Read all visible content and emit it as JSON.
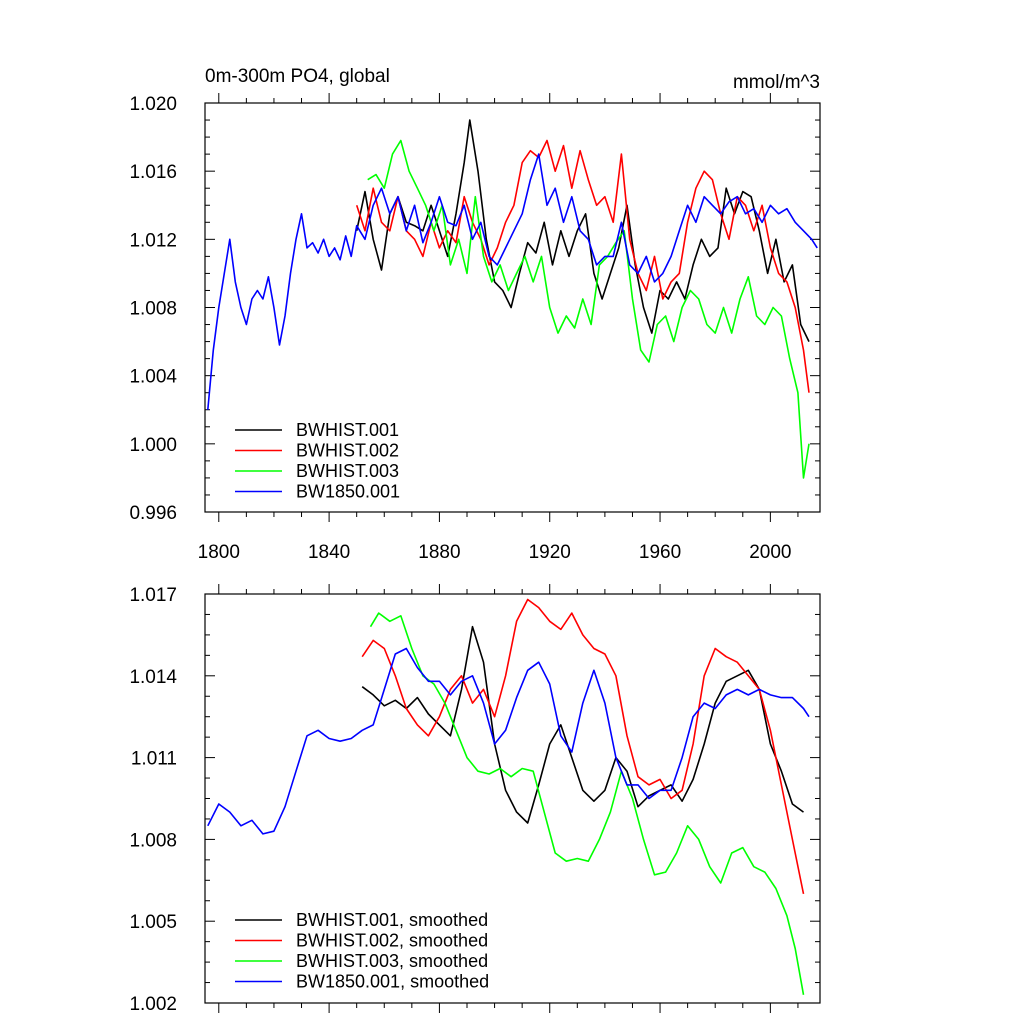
{
  "chart_data": [
    {
      "type": "line",
      "title": "0m-300m PO4, global",
      "units": "mmol/m^3",
      "xlim": [
        1795,
        2018
      ],
      "ylim": [
        0.996,
        1.02
      ],
      "xticks": [
        1800,
        1840,
        1880,
        1920,
        1960,
        2000
      ],
      "yticks": [
        0.996,
        1.0,
        1.004,
        1.008,
        1.012,
        1.016,
        1.02
      ],
      "ytick_labels": [
        "0.996",
        "1.000",
        "1.004",
        "1.008",
        "1.012",
        "1.016",
        "1.020"
      ],
      "xtick_labels": [
        "1800",
        "1840",
        "1880",
        "1920",
        "1960",
        "2000"
      ],
      "legend": [
        "BWHIST.001",
        "BWHIST.002",
        "BWHIST.003",
        "BW1850.001"
      ],
      "series": [
        {
          "name": "BWHIST.001",
          "color": "#000000",
          "x": [
            1850,
            1853,
            1856,
            1859,
            1862,
            1865,
            1868,
            1871,
            1874,
            1877,
            1880,
            1883,
            1886,
            1889,
            1891,
            1894,
            1897,
            1900,
            1903,
            1906,
            1909,
            1912,
            1915,
            1918,
            1921,
            1924,
            1927,
            1930,
            1933,
            1936,
            1939,
            1942,
            1945,
            1948,
            1951,
            1954,
            1957,
            1960,
            1963,
            1966,
            1969,
            1972,
            1975,
            1978,
            1981,
            1984,
            1987,
            1990,
            1993,
            1996,
            1999,
            2002,
            2005,
            2008,
            2011,
            2014
          ],
          "values": [
            1.0125,
            1.0148,
            1.012,
            1.0102,
            1.0135,
            1.0145,
            1.013,
            1.0128,
            1.0125,
            1.014,
            1.0125,
            1.011,
            1.0135,
            1.0165,
            1.019,
            1.016,
            1.012,
            1.0095,
            1.009,
            1.008,
            1.01,
            1.0118,
            1.0112,
            1.013,
            1.0105,
            1.0125,
            1.011,
            1.0125,
            1.0135,
            1.01,
            1.0085,
            1.01,
            1.0115,
            1.014,
            1.0105,
            1.008,
            1.0065,
            1.009,
            1.0085,
            1.0095,
            1.0085,
            1.0105,
            1.012,
            1.011,
            1.0115,
            1.015,
            1.0135,
            1.0148,
            1.0145,
            1.0125,
            1.01,
            1.012,
            1.0095,
            1.0105,
            1.007,
            1.006
          ]
        },
        {
          "name": "BWHIST.002",
          "color": "#ff0000",
          "x": [
            1850,
            1853,
            1856,
            1859,
            1862,
            1865,
            1868,
            1871,
            1874,
            1877,
            1880,
            1883,
            1886,
            1889,
            1892,
            1895,
            1898,
            1901,
            1904,
            1907,
            1910,
            1913,
            1916,
            1919,
            1922,
            1925,
            1928,
            1931,
            1934,
            1937,
            1940,
            1943,
            1946,
            1949,
            1952,
            1955,
            1958,
            1961,
            1964,
            1967,
            1970,
            1973,
            1976,
            1979,
            1982,
            1985,
            1988,
            1991,
            1994,
            1997,
            2000,
            2003,
            2006,
            2009,
            2012,
            2014
          ],
          "values": [
            1.014,
            1.0125,
            1.015,
            1.013,
            1.0125,
            1.0145,
            1.0125,
            1.012,
            1.011,
            1.013,
            1.0115,
            1.0125,
            1.0118,
            1.0145,
            1.013,
            1.012,
            1.0105,
            1.0115,
            1.013,
            1.014,
            1.0165,
            1.0172,
            1.0168,
            1.0178,
            1.016,
            1.0175,
            1.015,
            1.0172,
            1.0155,
            1.014,
            1.0145,
            1.013,
            1.017,
            1.012,
            1.01,
            1.009,
            1.011,
            1.0085,
            1.0095,
            1.01,
            1.013,
            1.015,
            1.016,
            1.0155,
            1.0135,
            1.012,
            1.0145,
            1.014,
            1.0125,
            1.014,
            1.0115,
            1.01,
            1.0095,
            1.008,
            1.0055,
            1.003
          ]
        },
        {
          "name": "BWHIST.003",
          "color": "#00ff00",
          "x": [
            1854,
            1857,
            1860,
            1863,
            1866,
            1869,
            1872,
            1875,
            1878,
            1881,
            1884,
            1887,
            1890,
            1893,
            1896,
            1899,
            1902,
            1905,
            1908,
            1911,
            1914,
            1917,
            1920,
            1923,
            1926,
            1929,
            1932,
            1935,
            1938,
            1941,
            1944,
            1947,
            1950,
            1953,
            1956,
            1959,
            1962,
            1965,
            1968,
            1971,
            1974,
            1977,
            1980,
            1983,
            1986,
            1989,
            1992,
            1995,
            1998,
            2001,
            2004,
            2007,
            2010,
            2012,
            2014
          ],
          "values": [
            1.0155,
            1.0158,
            1.015,
            1.017,
            1.0178,
            1.016,
            1.015,
            1.014,
            1.0125,
            1.014,
            1.0105,
            1.012,
            1.01,
            1.0145,
            1.011,
            1.0095,
            1.0105,
            1.009,
            1.01,
            1.011,
            1.0095,
            1.011,
            1.008,
            1.0065,
            1.0075,
            1.0068,
            1.0085,
            1.007,
            1.0105,
            1.011,
            1.0118,
            1.0125,
            1.0085,
            1.0055,
            1.0048,
            1.007,
            1.0075,
            1.006,
            1.008,
            1.009,
            1.0085,
            1.007,
            1.0065,
            1.008,
            1.0065,
            1.0085,
            1.0098,
            1.0075,
            1.007,
            1.008,
            1.0075,
            1.005,
            1.003,
            0.998,
            1.0
          ]
        },
        {
          "name": "BW1850.001",
          "color": "#0000ff",
          "x": [
            1796,
            1798,
            1800,
            1802,
            1804,
            1806,
            1808,
            1810,
            1812,
            1814,
            1816,
            1818,
            1820,
            1822,
            1824,
            1826,
            1828,
            1830,
            1832,
            1834,
            1836,
            1838,
            1840,
            1842,
            1844,
            1846,
            1848,
            1850,
            1853,
            1856,
            1859,
            1862,
            1865,
            1868,
            1871,
            1874,
            1877,
            1880,
            1883,
            1886,
            1889,
            1892,
            1895,
            1898,
            1901,
            1904,
            1907,
            1910,
            1913,
            1916,
            1919,
            1922,
            1925,
            1928,
            1931,
            1934,
            1937,
            1940,
            1943,
            1946,
            1949,
            1952,
            1955,
            1958,
            1961,
            1964,
            1967,
            1970,
            1973,
            1976,
            1979,
            1982,
            1985,
            1988,
            1991,
            1994,
            1997,
            2000,
            2003,
            2006,
            2009,
            2012,
            2015,
            2017
          ],
          "values": [
            1.002,
            1.0055,
            1.008,
            1.01,
            1.012,
            1.0095,
            1.008,
            1.007,
            1.0085,
            1.009,
            1.0085,
            1.0098,
            1.008,
            1.0058,
            1.0075,
            1.01,
            1.012,
            1.0135,
            1.0115,
            1.0118,
            1.0112,
            1.012,
            1.011,
            1.0115,
            1.0108,
            1.0122,
            1.011,
            1.0128,
            1.012,
            1.014,
            1.015,
            1.0135,
            1.0145,
            1.0125,
            1.014,
            1.0118,
            1.013,
            1.0145,
            1.013,
            1.0128,
            1.014,
            1.012,
            1.013,
            1.011,
            1.0105,
            1.0115,
            1.0125,
            1.0135,
            1.0155,
            1.017,
            1.014,
            1.015,
            1.013,
            1.0145,
            1.0125,
            1.012,
            1.0105,
            1.011,
            1.011,
            1.013,
            1.0105,
            1.01,
            1.011,
            1.0095,
            1.01,
            1.011,
            1.0125,
            1.014,
            1.013,
            1.0145,
            1.014,
            1.0135,
            1.0142,
            1.0145,
            1.0135,
            1.0138,
            1.013,
            1.014,
            1.0135,
            1.0138,
            1.013,
            1.0125,
            1.012,
            1.0115
          ]
        }
      ]
    },
    {
      "type": "line",
      "title": "",
      "xlim": [
        1795,
        2018
      ],
      "ylim": [
        1.002,
        1.017
      ],
      "xticks": [
        1800,
        1840,
        1880,
        1920,
        1960,
        2000
      ],
      "yticks": [
        1.002,
        1.005,
        1.008,
        1.011,
        1.014,
        1.017
      ],
      "ytick_labels": [
        "1.002",
        "1.005",
        "1.008",
        "1.011",
        "1.014",
        "1.017"
      ],
      "legend": [
        "BWHIST.001, smoothed",
        "BWHIST.002, smoothed",
        "BWHIST.003, smoothed",
        "BW1850.001, smoothed"
      ],
      "series": [
        {
          "name": "BWHIST.001, smoothed",
          "color": "#000000",
          "x": [
            1852,
            1856,
            1860,
            1864,
            1868,
            1872,
            1876,
            1880,
            1884,
            1888,
            1892,
            1896,
            1900,
            1904,
            1908,
            1912,
            1916,
            1920,
            1924,
            1928,
            1932,
            1936,
            1940,
            1944,
            1948,
            1952,
            1956,
            1960,
            1964,
            1968,
            1972,
            1976,
            1980,
            1984,
            1988,
            1992,
            1996,
            2000,
            2004,
            2008,
            2012
          ],
          "values": [
            1.0136,
            1.0133,
            1.0129,
            1.0131,
            1.0128,
            1.0132,
            1.0126,
            1.0122,
            1.0118,
            1.0135,
            1.0158,
            1.0145,
            1.0115,
            1.0098,
            1.009,
            1.0086,
            1.01,
            1.0115,
            1.0122,
            1.011,
            1.0098,
            1.0094,
            1.0098,
            1.011,
            1.0105,
            1.0092,
            1.0096,
            1.0098,
            1.01,
            1.0094,
            1.0102,
            1.0115,
            1.013,
            1.0138,
            1.014,
            1.0142,
            1.0135,
            1.0115,
            1.0105,
            1.0093,
            1.009
          ]
        },
        {
          "name": "BWHIST.002, smoothed",
          "color": "#ff0000",
          "x": [
            1852,
            1856,
            1860,
            1864,
            1868,
            1872,
            1876,
            1880,
            1884,
            1888,
            1892,
            1896,
            1900,
            1904,
            1908,
            1912,
            1916,
            1920,
            1924,
            1928,
            1932,
            1936,
            1940,
            1944,
            1948,
            1952,
            1956,
            1960,
            1964,
            1968,
            1972,
            1976,
            1980,
            1984,
            1988,
            1992,
            1996,
            2000,
            2004,
            2008,
            2012
          ],
          "values": [
            1.0147,
            1.0153,
            1.015,
            1.014,
            1.0128,
            1.0122,
            1.0118,
            1.0125,
            1.0135,
            1.014,
            1.013,
            1.0135,
            1.0125,
            1.014,
            1.016,
            1.0168,
            1.0165,
            1.016,
            1.0157,
            1.0163,
            1.0155,
            1.015,
            1.0148,
            1.014,
            1.0118,
            1.0103,
            1.01,
            1.0102,
            1.0095,
            1.0098,
            1.0115,
            1.014,
            1.015,
            1.0147,
            1.0145,
            1.014,
            1.0135,
            1.012,
            1.01,
            1.008,
            1.006
          ]
        },
        {
          "name": "BWHIST.003, smoothed",
          "color": "#00ff00",
          "x": [
            1855,
            1858,
            1862,
            1866,
            1870,
            1874,
            1878,
            1882,
            1886,
            1890,
            1894,
            1898,
            1902,
            1906,
            1910,
            1914,
            1918,
            1922,
            1926,
            1930,
            1934,
            1938,
            1942,
            1946,
            1950,
            1954,
            1958,
            1962,
            1966,
            1970,
            1974,
            1978,
            1982,
            1986,
            1990,
            1994,
            1998,
            2002,
            2006,
            2009,
            2012
          ],
          "values": [
            1.0158,
            1.0163,
            1.016,
            1.0162,
            1.015,
            1.014,
            1.0137,
            1.013,
            1.012,
            1.011,
            1.0105,
            1.0104,
            1.0106,
            1.0103,
            1.0106,
            1.0105,
            1.009,
            1.0075,
            1.0072,
            1.0073,
            1.0072,
            1.008,
            1.009,
            1.0105,
            1.0095,
            1.008,
            1.0067,
            1.0068,
            1.0075,
            1.0085,
            1.008,
            1.007,
            1.0064,
            1.0075,
            1.0077,
            1.007,
            1.0068,
            1.0062,
            1.0052,
            1.004,
            1.0023
          ]
        },
        {
          "name": "BW1850.001, smoothed",
          "color": "#0000ff",
          "x": [
            1796,
            1800,
            1804,
            1808,
            1812,
            1816,
            1820,
            1824,
            1828,
            1832,
            1836,
            1840,
            1844,
            1848,
            1852,
            1856,
            1860,
            1864,
            1868,
            1872,
            1876,
            1880,
            1884,
            1888,
            1892,
            1896,
            1900,
            1904,
            1908,
            1912,
            1916,
            1920,
            1924,
            1928,
            1932,
            1936,
            1940,
            1944,
            1948,
            1952,
            1956,
            1960,
            1964,
            1968,
            1972,
            1976,
            1980,
            1984,
            1988,
            1992,
            1996,
            2000,
            2004,
            2008,
            2012,
            2014
          ],
          "values": [
            1.0085,
            1.0093,
            1.009,
            1.0085,
            1.0087,
            1.0082,
            1.0083,
            1.0092,
            1.0105,
            1.0118,
            1.012,
            1.0117,
            1.0116,
            1.0117,
            1.012,
            1.0122,
            1.0135,
            1.0148,
            1.015,
            1.0143,
            1.0138,
            1.0138,
            1.0133,
            1.0138,
            1.014,
            1.013,
            1.0115,
            1.012,
            1.0132,
            1.0142,
            1.0145,
            1.0137,
            1.0118,
            1.0112,
            1.013,
            1.0142,
            1.013,
            1.011,
            1.01,
            1.01,
            1.0095,
            1.0098,
            1.0098,
            1.011,
            1.0125,
            1.013,
            1.0128,
            1.0133,
            1.0135,
            1.0133,
            1.0135,
            1.0133,
            1.0132,
            1.0132,
            1.0128,
            1.0125
          ]
        }
      ]
    }
  ]
}
